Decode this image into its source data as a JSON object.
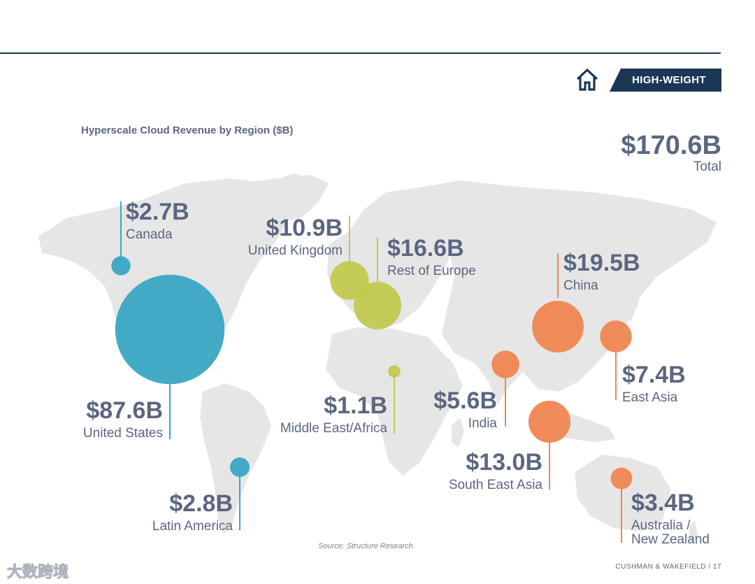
{
  "header": {
    "badge_label": "HIGH-WEIGHT",
    "icon": "house-icon"
  },
  "colors": {
    "americas": "#3aa7c4",
    "europe_africa": "#c2c94e",
    "asia": "#ef8651",
    "text": "#5b6680",
    "land": "#e6e6e6",
    "badge_bg": "#1c3756"
  },
  "chart_data": {
    "type": "bubble-map",
    "title": "Hyperscale Cloud Revenue by Region ($B)",
    "unit": "$B",
    "total": {
      "value": 170.6,
      "value_label": "$170.6B",
      "label": "Total"
    },
    "regions": [
      {
        "name": "Canada",
        "value": 2.7,
        "value_label": "$2.7B",
        "group": "americas"
      },
      {
        "name": "United States",
        "value": 87.6,
        "value_label": "$87.6B",
        "group": "americas"
      },
      {
        "name": "Latin America",
        "value": 2.8,
        "value_label": "$2.8B",
        "group": "americas"
      },
      {
        "name": "United Kingdom",
        "value": 10.9,
        "value_label": "$10.9B",
        "group": "europe_africa"
      },
      {
        "name": "Rest of Europe",
        "value": 16.6,
        "value_label": "$16.6B",
        "group": "europe_africa"
      },
      {
        "name": "Middle East/Africa",
        "value": 1.1,
        "value_label": "$1.1B",
        "group": "europe_africa"
      },
      {
        "name": "China",
        "value": 19.5,
        "value_label": "$19.5B",
        "group": "asia"
      },
      {
        "name": "East Asia",
        "value": 7.4,
        "value_label": "$7.4B",
        "group": "asia"
      },
      {
        "name": "India",
        "value": 5.6,
        "value_label": "$5.6B",
        "group": "asia"
      },
      {
        "name": "South East Asia",
        "value": 13.0,
        "value_label": "$13.0B",
        "group": "asia"
      },
      {
        "name": "Australia / New Zealand",
        "value": 3.4,
        "value_label": "$3.4B",
        "group": "asia"
      }
    ]
  },
  "source": "Source: Structure Research",
  "footer": "CUSHMAN & WAKEFIELD / 17",
  "watermark": "大数跨境"
}
